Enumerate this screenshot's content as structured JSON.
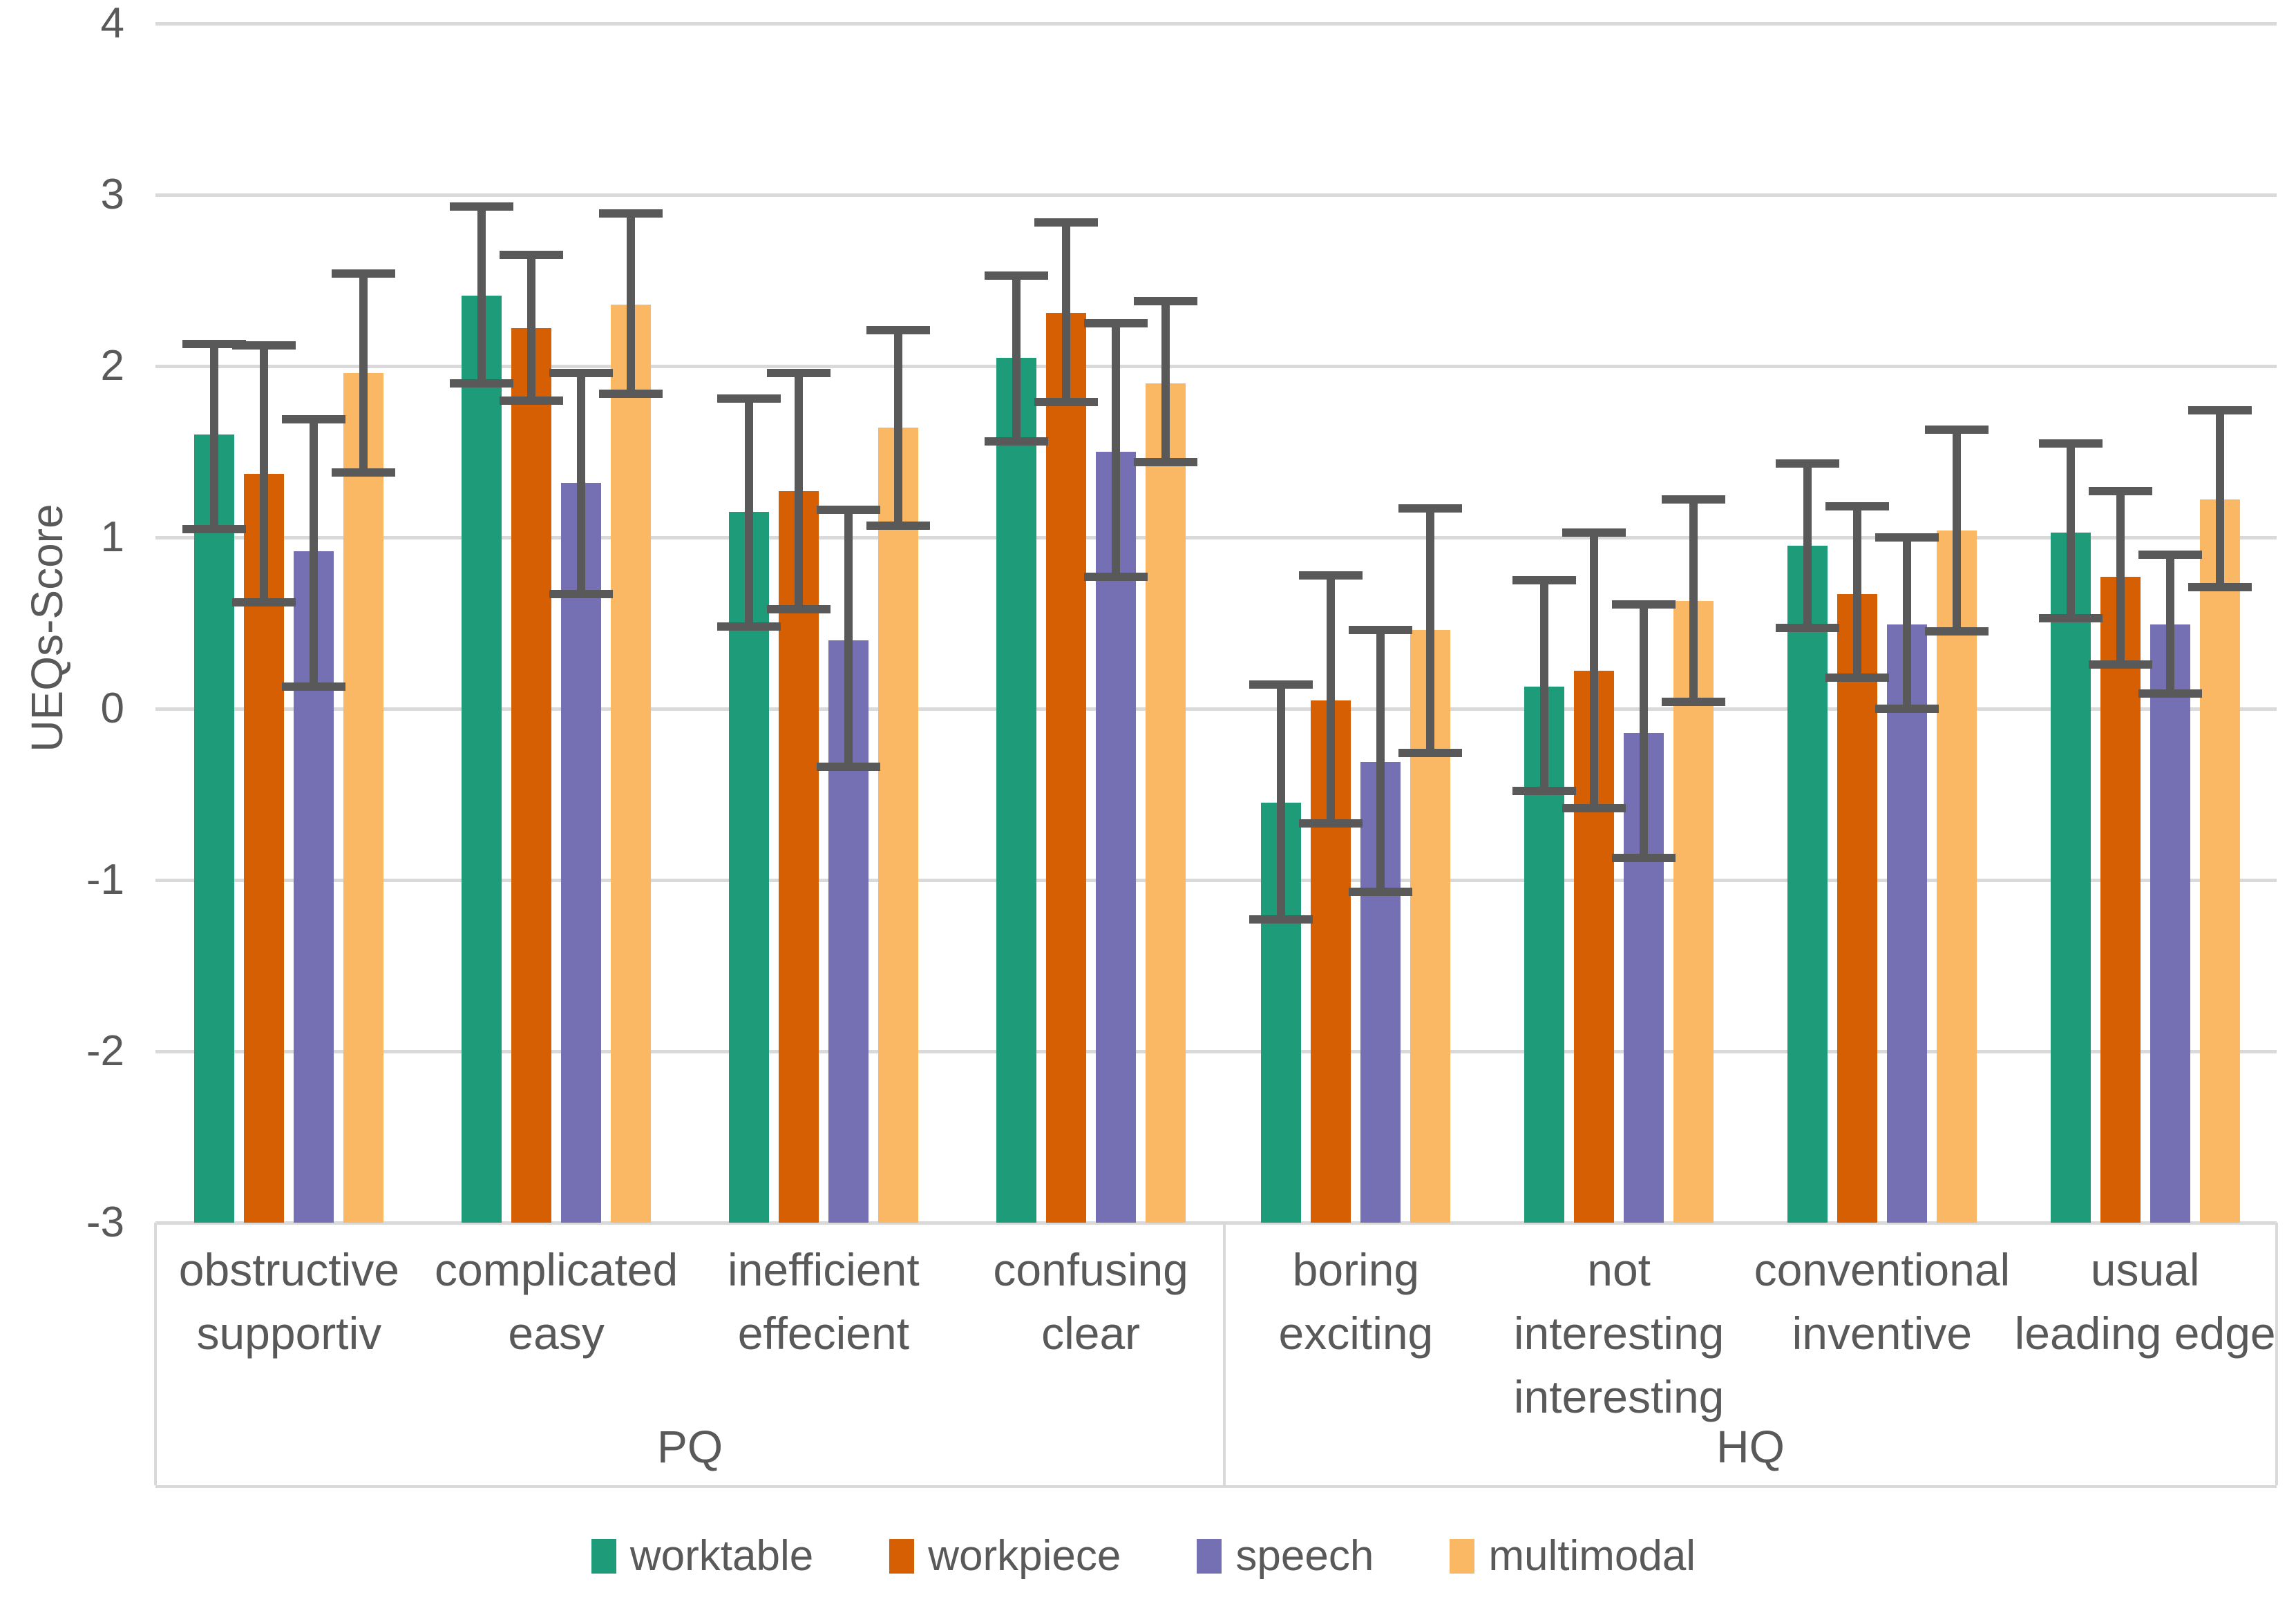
{
  "figure": {
    "background": "#FFFFFF"
  },
  "axis": {
    "title": "UEQs-Score",
    "tick_labels": [
      "4",
      "3",
      "2",
      "1",
      "0",
      "-1",
      "-2",
      "-3"
    ]
  },
  "colors": {
    "gridline": "#D9D9D9",
    "border": "#D9D9D9",
    "error_bar": "#595959",
    "text": "#595959",
    "worktable": "#1E9B78",
    "workpiece": "#D55F02",
    "speech": "#7570B3",
    "multimodal": "#FBB864"
  },
  "legend": {
    "items": [
      {
        "label": "worktable",
        "color": "#1E9B78"
      },
      {
        "label": "workpiece",
        "color": "#D55F02"
      },
      {
        "label": "speech",
        "color": "#7570B3"
      },
      {
        "label": "multimodal",
        "color": "#FBB864"
      }
    ]
  },
  "chart_data": {
    "type": "bar",
    "title": "",
    "xlabel": "",
    "ylabel": "UEQs-Score",
    "ylim": [
      -3,
      4
    ],
    "grid": true,
    "legend_position": "bottom",
    "sections": [
      {
        "label": "PQ",
        "category_indices": [
          0,
          1,
          2,
          3
        ]
      },
      {
        "label": "HQ",
        "category_indices": [
          4,
          5,
          6,
          7
        ]
      }
    ],
    "categories": [
      {
        "lines": [
          "obstructive",
          "supportiv"
        ],
        "section": "PQ"
      },
      {
        "lines": [
          "complicated",
          "easy"
        ],
        "section": "PQ"
      },
      {
        "lines": [
          "inefficient",
          "effecient"
        ],
        "section": "PQ"
      },
      {
        "lines": [
          "confusing",
          "clear"
        ],
        "section": "PQ"
      },
      {
        "lines": [
          "boring",
          "exciting"
        ],
        "section": "HQ"
      },
      {
        "lines": [
          "not",
          "interesting",
          "interesting"
        ],
        "section": "HQ"
      },
      {
        "lines": [
          "conventional",
          "inventive"
        ],
        "section": "HQ"
      },
      {
        "lines": [
          "usual",
          "leading edge"
        ],
        "section": "HQ"
      }
    ],
    "series": [
      {
        "name": "worktable",
        "color": "#1E9B78",
        "values": [
          1.6,
          2.41,
          1.15,
          2.05,
          -0.55,
          0.13,
          0.95,
          1.03
        ],
        "error_low": [
          1.05,
          1.9,
          0.48,
          1.56,
          -1.23,
          -0.48,
          0.47,
          0.53
        ],
        "error_high": [
          2.13,
          2.93,
          1.81,
          2.53,
          0.14,
          0.75,
          1.43,
          1.55
        ]
      },
      {
        "name": "workpiece",
        "color": "#D55F02",
        "values": [
          1.37,
          2.22,
          1.27,
          2.31,
          0.05,
          0.22,
          0.67,
          0.77
        ],
        "error_low": [
          0.62,
          1.8,
          0.58,
          1.79,
          -0.67,
          -0.58,
          0.18,
          0.26
        ],
        "error_high": [
          2.12,
          2.65,
          1.96,
          2.84,
          0.78,
          1.03,
          1.18,
          1.27
        ]
      },
      {
        "name": "speech",
        "color": "#7570B3",
        "values": [
          0.92,
          1.32,
          0.4,
          1.5,
          -0.31,
          -0.14,
          0.49,
          0.49
        ],
        "error_low": [
          0.13,
          0.67,
          -0.34,
          0.77,
          -1.07,
          -0.87,
          0.0,
          0.09
        ],
        "error_high": [
          1.69,
          1.96,
          1.16,
          2.25,
          0.46,
          0.61,
          1.0,
          0.9
        ]
      },
      {
        "name": "multimodal",
        "color": "#FBB864",
        "values": [
          1.96,
          2.36,
          1.64,
          1.9,
          0.46,
          0.63,
          1.04,
          1.22
        ],
        "error_low": [
          1.38,
          1.84,
          1.07,
          1.44,
          -0.26,
          0.04,
          0.45,
          0.71
        ],
        "error_high": [
          2.54,
          2.89,
          2.21,
          2.38,
          1.17,
          1.22,
          1.63,
          1.74
        ]
      }
    ]
  }
}
